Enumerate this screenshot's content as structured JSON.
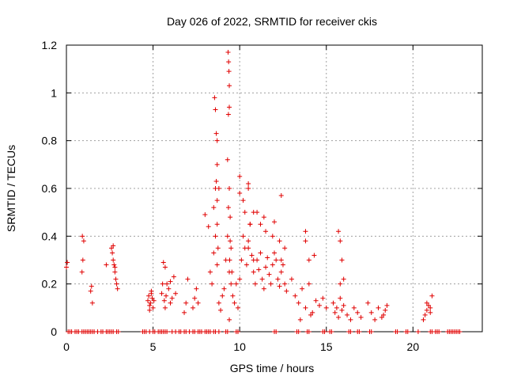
{
  "chart_data": {
    "type": "scatter",
    "title": "Day 026 of 2022, SRMTID for receiver ckis",
    "xlabel": "GPS time / hours",
    "ylabel": "SRMTID / TECUs",
    "xlim": [
      0,
      24
    ],
    "ylim": [
      0,
      1.2
    ],
    "x_ticks": [
      0,
      5,
      10,
      15,
      20
    ],
    "x_tick_labels": [
      "0",
      "5",
      "10",
      "15",
      "20"
    ],
    "y_ticks": [
      0,
      0.2,
      0.4,
      0.6,
      0.8,
      1.0,
      1.2
    ],
    "y_tick_labels": [
      "0",
      "0.2",
      "0.4",
      "0.6",
      "0.8",
      "1",
      "1.2"
    ],
    "grid": true,
    "marker": "+",
    "series": [
      {
        "name": "SRMTID",
        "color": "#e00000",
        "x": [
          0.0,
          0.05,
          0.9,
          0.95,
          1.0,
          0.92,
          1.4,
          1.45,
          1.5,
          2.3,
          2.6,
          2.65,
          2.7,
          2.75,
          2.8,
          2.85,
          2.9,
          2.95,
          2.7,
          2.8,
          4.7,
          4.75,
          4.8,
          4.85,
          4.9,
          4.95,
          5.0,
          5.05,
          4.8,
          4.9,
          5.5,
          5.55,
          5.6,
          5.65,
          5.7,
          5.75,
          5.8,
          5.9,
          6.0,
          6.1,
          6.2,
          6.3,
          6.0,
          5.7,
          6.8,
          6.9,
          7.0,
          7.3,
          7.4,
          7.5,
          7.6,
          8.0,
          8.2,
          8.3,
          8.4,
          8.5,
          8.6,
          8.7,
          8.8,
          8.9,
          9.0,
          9.1,
          8.5,
          8.6,
          8.7,
          8.65,
          8.55,
          8.6,
          8.7,
          8.65,
          9.2,
          9.3,
          9.35,
          9.4,
          9.45,
          9.5,
          9.55,
          9.6,
          9.7,
          9.8,
          9.9,
          9.3,
          9.35,
          9.4,
          9.38,
          9.33,
          9.36,
          9.4,
          10.0,
          10.1,
          10.2,
          10.3,
          10.4,
          10.5,
          10.6,
          10.7,
          10.8,
          10.9,
          11.0,
          11.1,
          11.2,
          11.3,
          11.4,
          11.5,
          11.6,
          11.7,
          11.8,
          11.9,
          12.0,
          12.1,
          12.2,
          12.3,
          12.4,
          12.5,
          12.6,
          12.7,
          10.0,
          10.2,
          10.5,
          10.8,
          11.2,
          11.5,
          11.9,
          12.3,
          12.6,
          10.0,
          10.3,
          10.5,
          10.6,
          11.0,
          11.4,
          12.0,
          12.4,
          13.0,
          13.2,
          13.4,
          13.6,
          13.8,
          14.0,
          14.2,
          14.4,
          14.6,
          14.8,
          15.0,
          13.8,
          14.0,
          14.3,
          13.5,
          14.1,
          15.4,
          15.5,
          15.6,
          15.7,
          15.8,
          15.9,
          16.0,
          16.2,
          16.4,
          16.6,
          16.8,
          17.0,
          15.7,
          15.8,
          15.9,
          16.0,
          17.4,
          17.6,
          17.8,
          18.0,
          18.2,
          18.4,
          18.5,
          18.3,
          20.6,
          20.7,
          20.8,
          20.9,
          21.0,
          21.1,
          20.8,
          21.0,
          8.7,
          8.75,
          8.8,
          8.7,
          9.4,
          9.45,
          9.42,
          9.5,
          10.5,
          10.8,
          12.4,
          13.8,
          15.8,
          9.4
        ],
        "y": [
          0.27,
          0.29,
          0.25,
          0.3,
          0.38,
          0.4,
          0.17,
          0.19,
          0.12,
          0.28,
          0.35,
          0.33,
          0.3,
          0.28,
          0.25,
          0.22,
          0.2,
          0.18,
          0.36,
          0.27,
          0.13,
          0.15,
          0.11,
          0.12,
          0.16,
          0.14,
          0.1,
          0.13,
          0.09,
          0.17,
          0.16,
          0.2,
          0.29,
          0.13,
          0.1,
          0.15,
          0.2,
          0.18,
          0.21,
          0.14,
          0.23,
          0.16,
          0.12,
          0.27,
          0.08,
          0.12,
          0.22,
          0.1,
          0.14,
          0.18,
          0.12,
          0.49,
          0.44,
          0.25,
          0.2,
          0.33,
          0.4,
          0.55,
          0.12,
          0.09,
          0.15,
          0.18,
          0.52,
          0.6,
          0.7,
          0.83,
          0.98,
          0.93,
          0.8,
          0.63,
          0.3,
          0.4,
          0.52,
          0.6,
          0.48,
          0.35,
          0.25,
          0.15,
          0.12,
          0.2,
          0.1,
          0.72,
          0.91,
          1.03,
          1.09,
          1.17,
          1.13,
          0.94,
          0.22,
          0.3,
          0.4,
          0.35,
          0.28,
          0.38,
          0.45,
          0.32,
          0.25,
          0.2,
          0.3,
          0.26,
          0.33,
          0.22,
          0.18,
          0.27,
          0.31,
          0.24,
          0.2,
          0.28,
          0.33,
          0.3,
          0.22,
          0.19,
          0.25,
          0.28,
          0.2,
          0.17,
          0.58,
          0.55,
          0.6,
          0.5,
          0.45,
          0.42,
          0.4,
          0.38,
          0.35,
          0.65,
          0.5,
          0.62,
          0.45,
          0.5,
          0.48,
          0.46,
          0.57,
          0.22,
          0.15,
          0.12,
          0.18,
          0.1,
          0.2,
          0.08,
          0.13,
          0.11,
          0.14,
          0.1,
          0.42,
          0.3,
          0.32,
          0.05,
          0.07,
          0.12,
          0.08,
          0.1,
          0.06,
          0.14,
          0.09,
          0.11,
          0.07,
          0.05,
          0.1,
          0.08,
          0.06,
          0.42,
          0.38,
          0.3,
          0.22,
          0.12,
          0.08,
          0.05,
          0.1,
          0.06,
          0.09,
          0.11,
          0.07,
          0.05,
          0.07,
          0.09,
          0.11,
          0.1,
          0.15,
          0.12,
          0.08,
          0.45,
          0.35,
          0.6,
          0.28,
          0.25,
          0.38,
          0.3,
          0.2,
          0.35,
          0.3,
          0.3,
          0.38,
          0.2,
          0.05
        ],
        "zero_x": [
          0.1,
          0.2,
          0.3,
          0.5,
          0.6,
          0.7,
          0.9,
          1.0,
          1.1,
          1.2,
          1.3,
          1.4,
          1.5,
          1.6,
          1.8,
          2.0,
          2.1,
          2.3,
          2.4,
          2.5,
          2.6,
          2.7,
          2.9,
          3.0,
          4.4,
          4.5,
          4.6,
          4.8,
          5.0,
          5.1,
          5.3,
          5.4,
          5.5,
          5.6,
          5.7,
          5.8,
          6.1,
          6.3,
          6.5,
          6.6,
          6.8,
          6.9,
          7.1,
          7.3,
          7.4,
          7.6,
          7.7,
          7.8,
          8.0,
          8.1,
          8.2,
          8.3,
          8.5,
          8.6,
          8.8,
          9.2,
          9.3,
          9.8,
          9.9,
          12.0,
          12.1,
          13.3,
          13.4,
          13.9,
          14.0,
          14.8,
          14.9,
          15.2,
          15.3,
          16.3,
          16.4,
          16.8,
          16.9,
          17.5,
          17.6,
          19.0,
          19.1,
          19.6,
          19.7,
          20.3,
          21.0,
          21.1,
          21.3,
          21.4,
          21.5,
          22.0,
          22.1,
          22.2,
          22.3,
          22.4,
          22.5,
          22.6,
          22.7
        ]
      }
    ]
  }
}
